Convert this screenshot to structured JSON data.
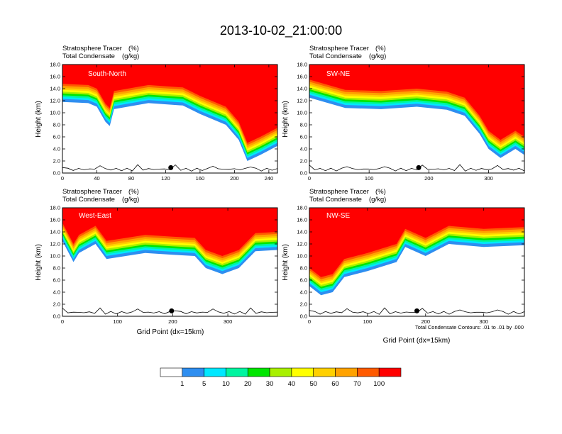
{
  "figure": {
    "title": "2013-10-02_21:00:00",
    "footnote": "Total Condensate Contours: .01 to .01 by .000"
  },
  "colors": {
    "levels": [
      "#ffffff",
      "#2e8ef0",
      "#00e8ff",
      "#00f5a0",
      "#00e600",
      "#a8f000",
      "#ffff00",
      "#ffd000",
      "#ffa200",
      "#ff5a00",
      "#ff0000"
    ],
    "contour": "#000000"
  },
  "colorbar": {
    "labels": [
      "1",
      "5",
      "10",
      "20",
      "30",
      "40",
      "50",
      "60",
      "70",
      "100"
    ]
  },
  "chart_data": [
    {
      "type": "heatmap",
      "panel_label": "South-North",
      "left_title_1": "Stratosphere Tracer",
      "left_unit_1": "(%)",
      "left_title_2": "Total Condensate",
      "left_unit_2": "(g/kg)",
      "ylabel": "Height (km)",
      "xlabel": "",
      "xlim": [
        0,
        250
      ],
      "ylim": [
        0,
        18
      ],
      "xticks": [
        0,
        40,
        80,
        120,
        160,
        200,
        240
      ],
      "yticks": [
        "0.0",
        "2.0",
        "4.0",
        "6.0",
        "8.0",
        "10.0",
        "12.0",
        "14.0",
        "16.0",
        "18.0"
      ],
      "tracer_front_km": [
        [
          0,
          14.8
        ],
        [
          30,
          14.6
        ],
        [
          40,
          14.0
        ],
        [
          50,
          11.5
        ],
        [
          55,
          10.8
        ],
        [
          60,
          13.6
        ],
        [
          100,
          14.6
        ],
        [
          140,
          14.2
        ],
        [
          160,
          12.8
        ],
        [
          190,
          11.0
        ],
        [
          205,
          8.5
        ],
        [
          215,
          5.0
        ],
        [
          230,
          6.0
        ],
        [
          250,
          7.5
        ]
      ],
      "marker_x": 126
    },
    {
      "type": "heatmap",
      "panel_label": "SW-NE",
      "left_title_1": "Stratosphere Tracer",
      "left_unit_1": "(%)",
      "left_title_2": "Total Condensate",
      "left_unit_2": "(g/kg)",
      "ylabel": "Height (km)",
      "xlabel": "",
      "xlim": [
        0,
        360
      ],
      "ylim": [
        0,
        18
      ],
      "xticks": [
        0,
        100,
        200,
        300
      ],
      "yticks": [
        "0.0",
        "2.0",
        "4.0",
        "6.0",
        "8.0",
        "10.0",
        "12.0",
        "14.0",
        "16.0",
        "18.0"
      ],
      "tracer_front_km": [
        [
          0,
          15.5
        ],
        [
          60,
          13.8
        ],
        [
          120,
          13.6
        ],
        [
          180,
          14.0
        ],
        [
          230,
          13.5
        ],
        [
          260,
          12.5
        ],
        [
          285,
          9.5
        ],
        [
          300,
          7.0
        ],
        [
          320,
          5.5
        ],
        [
          345,
          7.0
        ],
        [
          360,
          6.0
        ]
      ],
      "marker_x": 183
    },
    {
      "type": "heatmap",
      "panel_label": "West-East",
      "left_title_1": "Stratosphere Tracer",
      "left_unit_1": "(%)",
      "left_title_2": "Total Condensate",
      "left_unit_2": "(g/kg)",
      "ylabel": "Height (km)",
      "xlabel": "Grid Point (dx=15km)",
      "xlim": [
        0,
        390
      ],
      "ylim": [
        0,
        18
      ],
      "xticks": [
        0,
        100,
        200,
        300
      ],
      "yticks": [
        "0.0",
        "2.0",
        "4.0",
        "6.0",
        "8.0",
        "10.0",
        "12.0",
        "14.0",
        "16.0",
        "18.0"
      ],
      "tracer_front_km": [
        [
          0,
          15.5
        ],
        [
          20,
          12.0
        ],
        [
          30,
          13.5
        ],
        [
          60,
          15.0
        ],
        [
          80,
          12.5
        ],
        [
          150,
          13.5
        ],
        [
          200,
          13.2
        ],
        [
          240,
          13.0
        ],
        [
          260,
          11.0
        ],
        [
          290,
          10.0
        ],
        [
          320,
          11.0
        ],
        [
          350,
          13.8
        ],
        [
          390,
          14.0
        ]
      ],
      "marker_x": 198
    },
    {
      "type": "heatmap",
      "panel_label": "NW-SE",
      "left_title_1": "Stratosphere Tracer",
      "left_unit_1": "(%)",
      "left_title_2": "Total Condensate",
      "left_unit_2": "(g/kg)",
      "ylabel": "Height (km)",
      "xlabel": "Grid Point (dx=15km)",
      "xlim": [
        0,
        370
      ],
      "ylim": [
        0,
        18
      ],
      "xticks": [
        0,
        100,
        200,
        300
      ],
      "yticks": [
        "0.0",
        "2.0",
        "4.0",
        "6.0",
        "8.0",
        "10.0",
        "12.0",
        "14.0",
        "16.0",
        "18.0"
      ],
      "tracer_front_km": [
        [
          0,
          8.0
        ],
        [
          20,
          6.5
        ],
        [
          40,
          7.0
        ],
        [
          60,
          9.5
        ],
        [
          100,
          10.5
        ],
        [
          150,
          12.0
        ],
        [
          165,
          14.5
        ],
        [
          200,
          13.0
        ],
        [
          240,
          15.0
        ],
        [
          300,
          14.5
        ],
        [
          370,
          14.8
        ]
      ],
      "marker_x": 185
    }
  ]
}
